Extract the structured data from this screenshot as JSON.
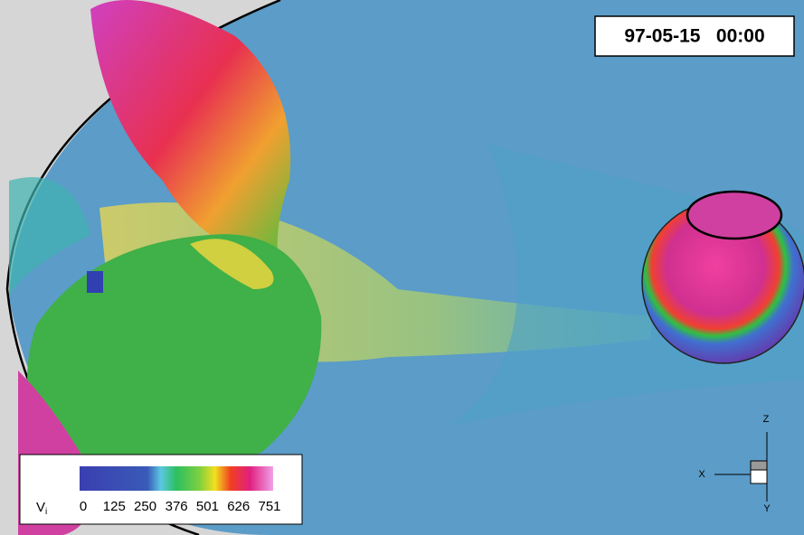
{
  "timestamp": "97-05-15   00:00",
  "colorbar": {
    "label": "V",
    "label_subscript": "i",
    "ticks": [
      0,
      125,
      250,
      376,
      501,
      626,
      751
    ]
  },
  "axes_triad": {
    "z": "Z",
    "x": "X",
    "y": "Y"
  }
}
